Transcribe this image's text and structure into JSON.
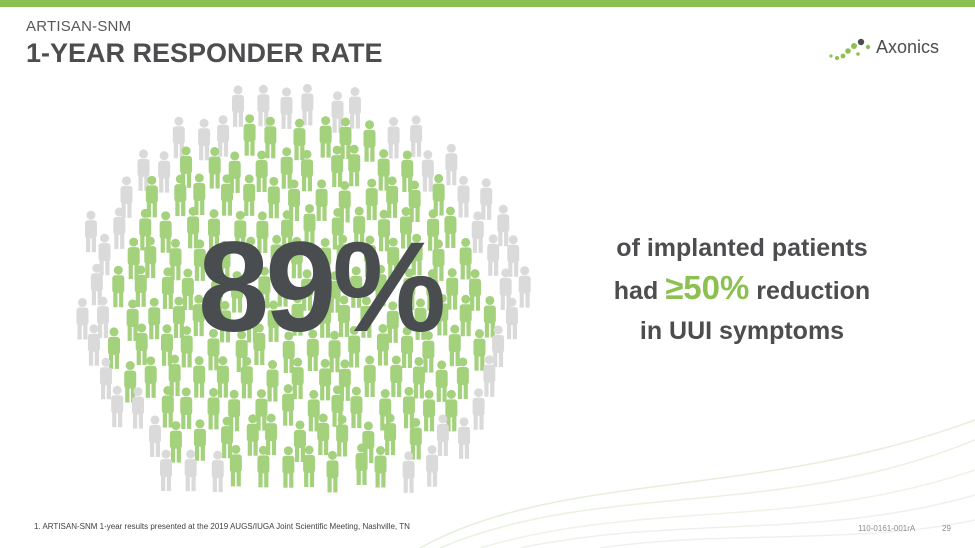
{
  "header": {
    "subtitle": "ARTISAN-SNM",
    "title": "1-YEAR RESPONDER RATE"
  },
  "logo": {
    "name": "Axonics"
  },
  "main": {
    "big_stat": "89%",
    "line1": "of implanted patients",
    "line2_pre": "had ",
    "line2_highlight": "≥50%",
    "line2_post": " reduction",
    "line3": "in UUI symptoms"
  },
  "footer": {
    "footnote": "1.  ARTISAN-SNM 1-year results presented at the 2019 AUGS/IUGA Joint Scientific Meeting, Nashville, TN",
    "doc_code": "110-0161-001rA",
    "page_number": "29"
  },
  "colors": {
    "accent_green": "#8cc152",
    "figure_green": "#a3d17c",
    "figure_grey": "#dadada",
    "text_dark": "#4d4d4f"
  }
}
